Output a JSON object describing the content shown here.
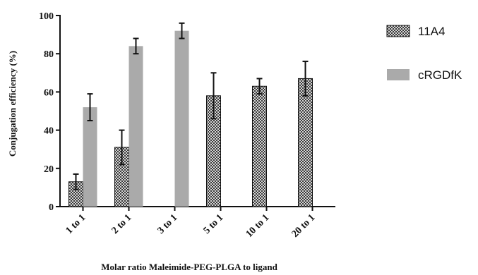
{
  "chart_data": {
    "type": "bar",
    "categories": [
      "1 to 1",
      "2 to 1",
      "3 to 1",
      "5 to 1",
      "10 to 1",
      "20 to 1"
    ],
    "series": [
      {
        "name": "11A4",
        "values": [
          13,
          31,
          null,
          58,
          63,
          67
        ],
        "errors": [
          4,
          9,
          null,
          12,
          4,
          9
        ],
        "color": "#4a4a4a",
        "pattern": "checkered"
      },
      {
        "name": "cRGDfK",
        "values": [
          52,
          84,
          92,
          null,
          null,
          null
        ],
        "errors": [
          7,
          4,
          4,
          null,
          null,
          null
        ],
        "color": "#aaaaaa",
        "pattern": "solid"
      }
    ],
    "title": "",
    "xlabel": "Molar ratio Maleimide-PEG-PLGA to ligand",
    "ylabel": "Conjugation efficiency (%)",
    "ylim": [
      0,
      100
    ],
    "yticks": [
      0,
      20,
      40,
      60,
      80,
      100
    ],
    "grid": false,
    "legend_position": "right"
  }
}
